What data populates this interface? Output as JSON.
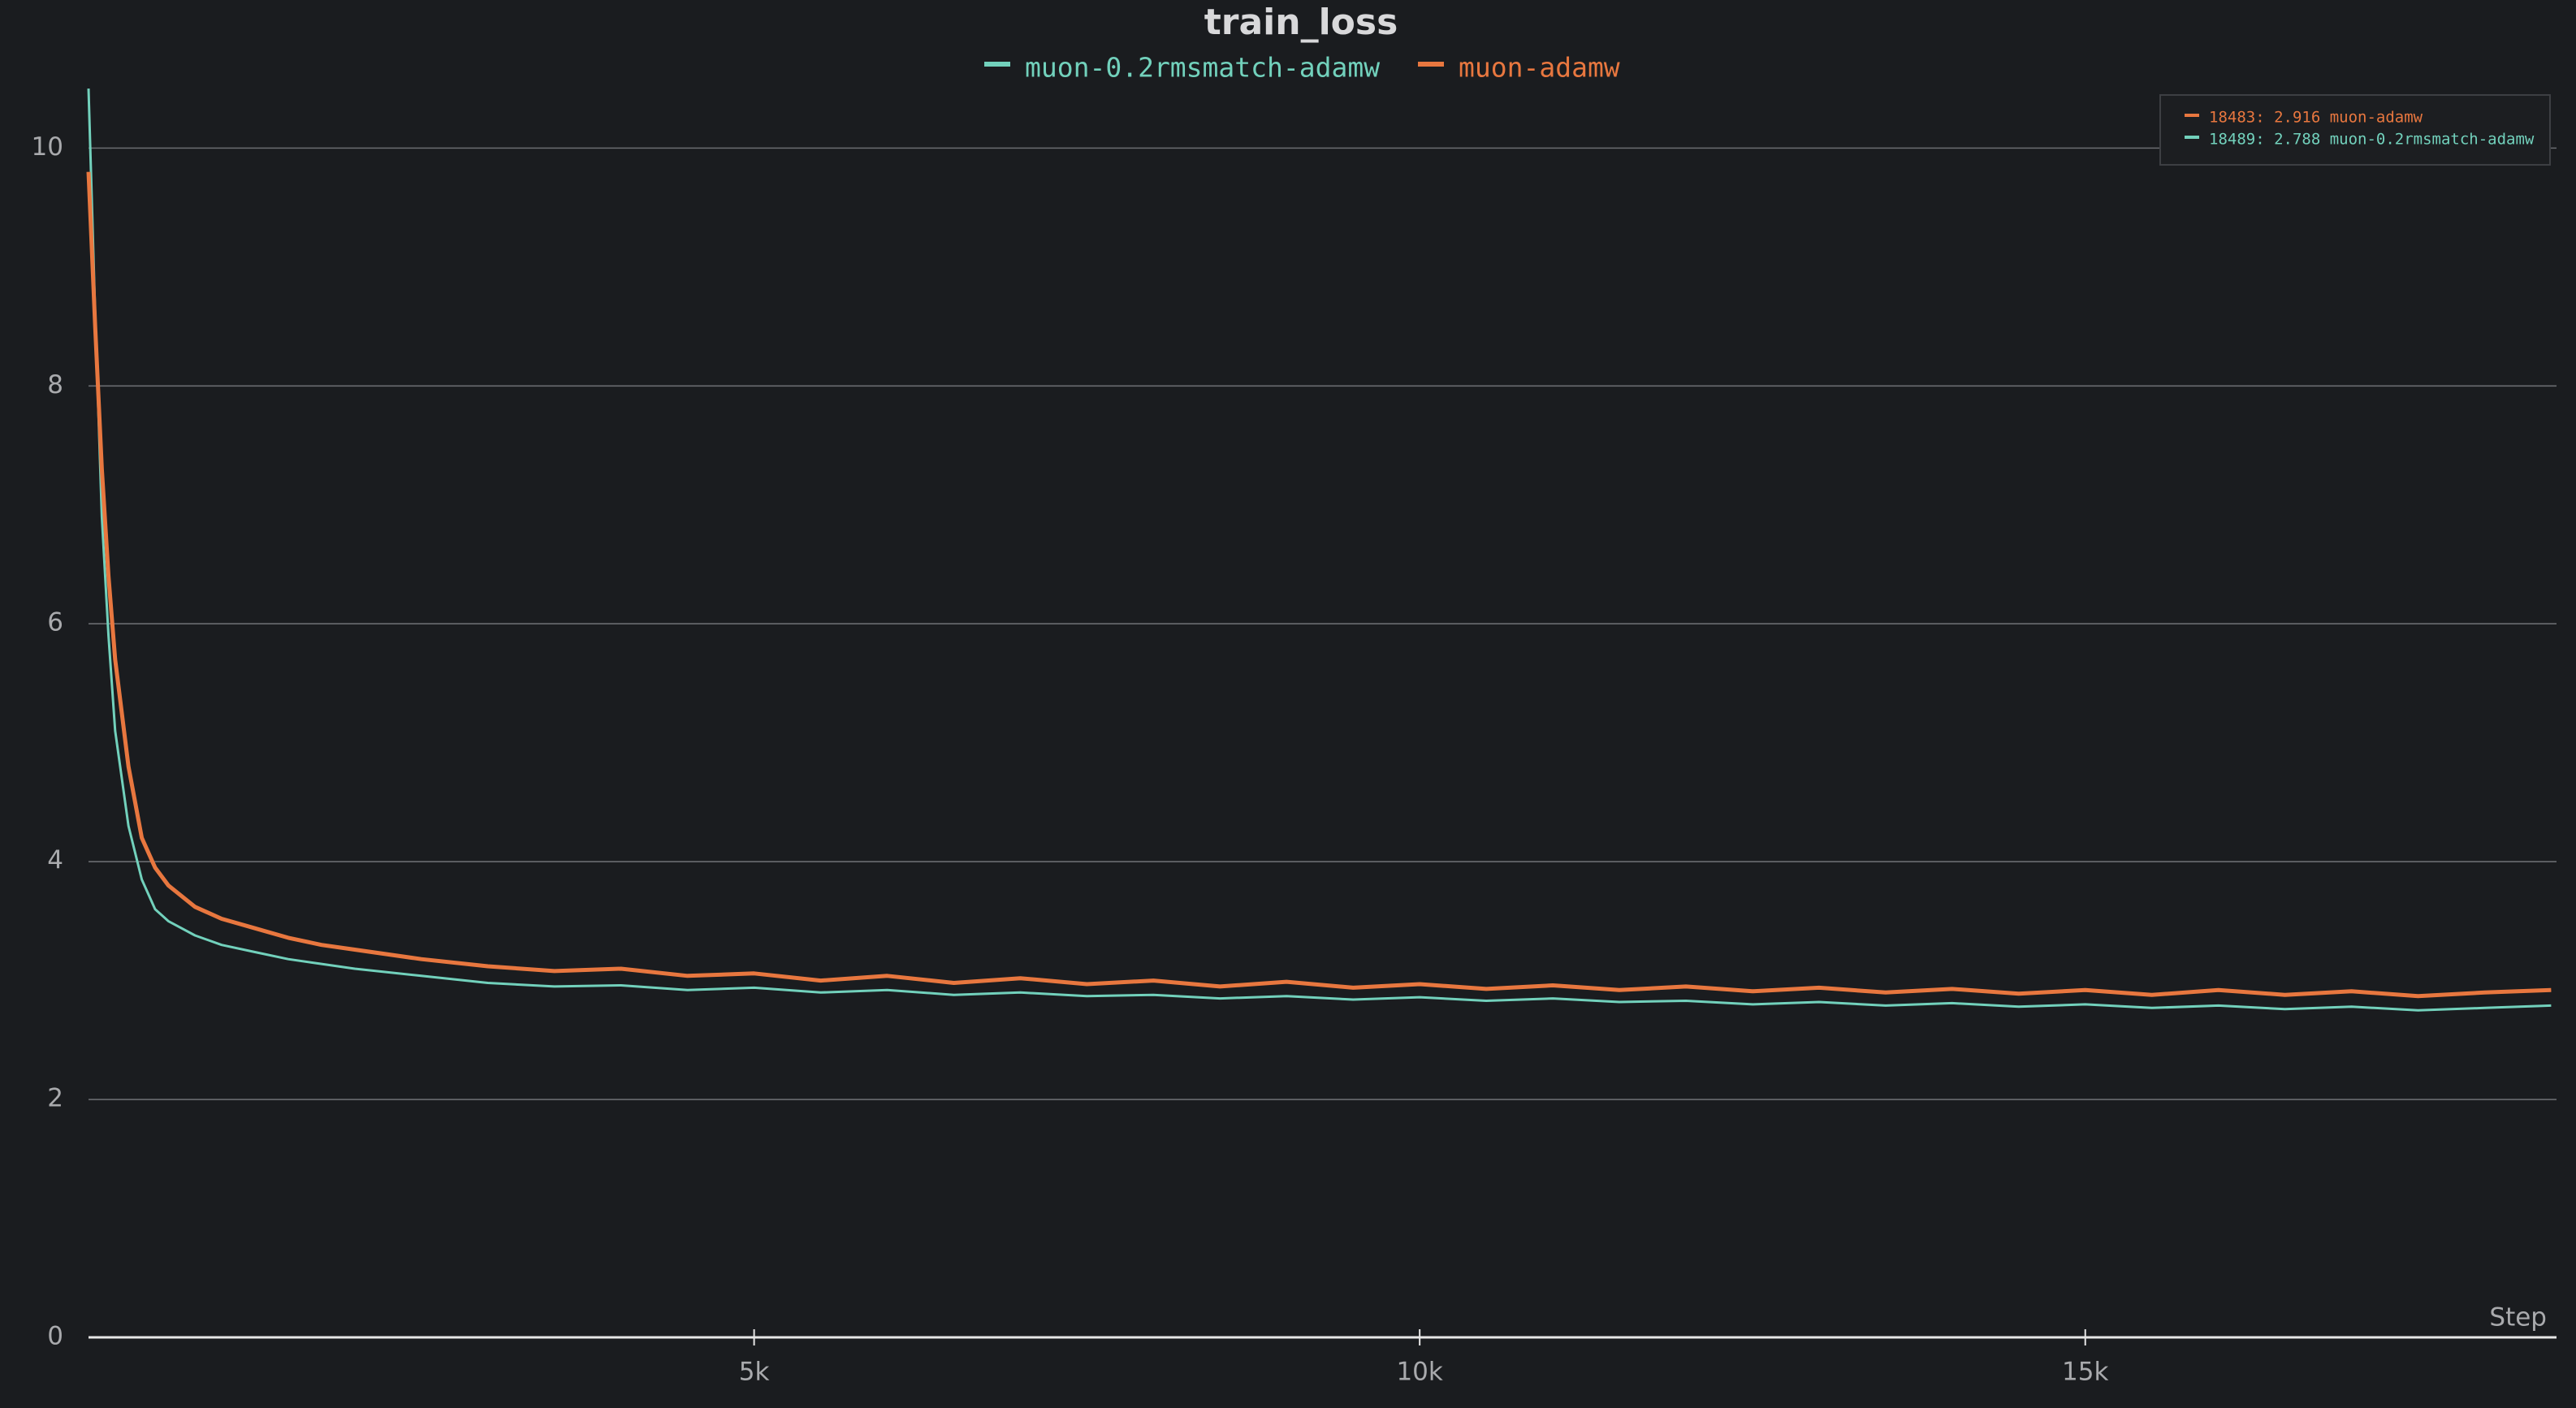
{
  "chart_data": {
    "type": "line",
    "title": "train_loss",
    "xlabel": "Step",
    "x": [
      0,
      50,
      100,
      150,
      200,
      300,
      400,
      500,
      600,
      800,
      1000,
      1250,
      1500,
      1750,
      2000,
      2500,
      3000,
      3500,
      4000,
      4500,
      5000,
      5500,
      6000,
      6500,
      7000,
      7500,
      8000,
      8500,
      9000,
      9500,
      10000,
      10500,
      11000,
      11500,
      12000,
      12500,
      13000,
      13500,
      14000,
      14500,
      15000,
      15500,
      16000,
      16500,
      17000,
      17500,
      18000,
      18500
    ],
    "series": [
      {
        "name": "muon-0.2rmsmatch-adamw",
        "color": "#72d1bc",
        "values": [
          10.5,
          8.6,
          6.9,
          5.9,
          5.1,
          4.3,
          3.85,
          3.6,
          3.5,
          3.38,
          3.3,
          3.24,
          3.18,
          3.14,
          3.1,
          3.04,
          2.98,
          2.95,
          2.96,
          2.92,
          2.94,
          2.9,
          2.92,
          2.88,
          2.9,
          2.87,
          2.88,
          2.85,
          2.87,
          2.84,
          2.86,
          2.83,
          2.85,
          2.82,
          2.83,
          2.8,
          2.82,
          2.79,
          2.81,
          2.78,
          2.8,
          2.77,
          2.79,
          2.76,
          2.78,
          2.75,
          2.77,
          2.79
        ]
      },
      {
        "name": "muon-adamw",
        "color": "#e8773f",
        "values": [
          9.8,
          8.5,
          7.3,
          6.4,
          5.7,
          4.8,
          4.2,
          3.95,
          3.8,
          3.62,
          3.52,
          3.44,
          3.36,
          3.3,
          3.26,
          3.18,
          3.12,
          3.08,
          3.1,
          3.04,
          3.06,
          3.0,
          3.04,
          2.98,
          3.02,
          2.97,
          3.0,
          2.95,
          2.99,
          2.94,
          2.97,
          2.93,
          2.96,
          2.92,
          2.95,
          2.91,
          2.94,
          2.9,
          2.93,
          2.89,
          2.92,
          2.88,
          2.92,
          2.88,
          2.91,
          2.87,
          2.9,
          2.92
        ]
      }
    ],
    "xlim": [
      0,
      18540
    ],
    "ylim": [
      0,
      10.46
    ],
    "xticks": [
      {
        "value": 5000,
        "label": "5k"
      },
      {
        "value": 10000,
        "label": "10k"
      },
      {
        "value": 15000,
        "label": "15k"
      }
    ],
    "yticks": [
      0,
      2,
      4,
      6,
      8,
      10
    ],
    "grid": true,
    "annotations": [
      "18483: 2.916 muon-adamw",
      "18489: 2.788 muon-0.2rmsmatch-adamw"
    ]
  }
}
